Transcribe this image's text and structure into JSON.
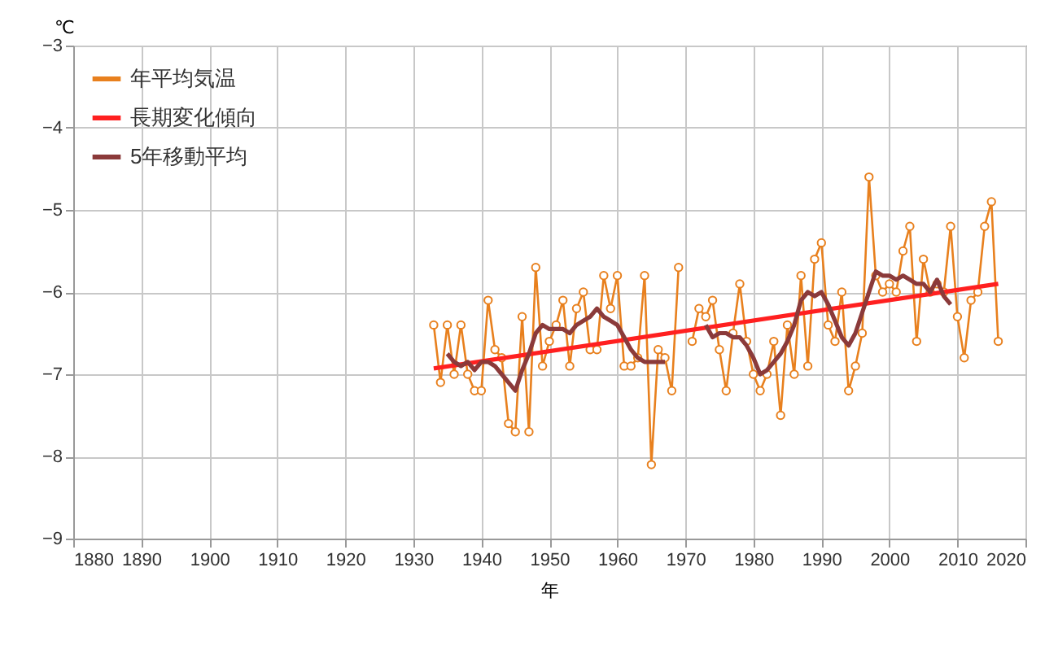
{
  "chart_data": {
    "type": "line",
    "xlabel": "年",
    "ylabel": "℃",
    "xlim": [
      1880,
      2020
    ],
    "xticks": [
      1880,
      1890,
      1900,
      1910,
      1920,
      1930,
      1940,
      1950,
      1960,
      1970,
      1980,
      1990,
      2000,
      2010,
      2020
    ],
    "ylim": [
      -9,
      -3
    ],
    "yticks": [
      -9,
      -8,
      -7,
      -6,
      -5,
      -4,
      -3
    ],
    "grid": true,
    "legend": "top left",
    "series": [
      {
        "name": "年平均気温",
        "color": "#e8801e",
        "marker": "circle",
        "x": [
          1933,
          1934,
          1935,
          1936,
          1937,
          1938,
          1939,
          1940,
          1941,
          1942,
          1943,
          1944,
          1945,
          1946,
          1947,
          1948,
          1949,
          1950,
          1951,
          1952,
          1953,
          1954,
          1955,
          1956,
          1957,
          1958,
          1959,
          1960,
          1961,
          1962,
          1963,
          1964,
          1965,
          1966,
          1967,
          1968,
          1969,
          1970,
          1971,
          1972,
          1973,
          1974,
          1975,
          1976,
          1977,
          1978,
          1979,
          1980,
          1981,
          1982,
          1983,
          1984,
          1985,
          1986,
          1987,
          1988,
          1989,
          1990,
          1991,
          1992,
          1993,
          1994,
          1995,
          1996,
          1997,
          1998,
          1999,
          2000,
          2001,
          2002,
          2003,
          2004,
          2005,
          2006,
          2007,
          2008,
          2009,
          2010,
          2011,
          2012,
          2013,
          2014,
          2015,
          2016
        ],
        "values": [
          -6.4,
          -7.1,
          -6.4,
          -7.0,
          -6.4,
          -7.0,
          -7.2,
          -7.2,
          -6.1,
          -6.7,
          -6.8,
          -7.6,
          -7.7,
          -6.3,
          -7.7,
          -5.7,
          -6.9,
          -6.6,
          -6.4,
          -6.1,
          -6.9,
          -6.2,
          -6.0,
          -6.7,
          -6.7,
          -5.8,
          -6.2,
          -5.8,
          -6.9,
          -6.9,
          -6.8,
          -5.8,
          -8.1,
          -6.7,
          -6.8,
          -7.2,
          -5.7,
          null,
          -6.6,
          -6.2,
          -6.3,
          -6.1,
          -6.7,
          -7.2,
          -6.5,
          -5.9,
          -6.6,
          -7.0,
          -7.2,
          -7.0,
          -6.6,
          -7.5,
          -6.4,
          -7.0,
          -5.8,
          -6.9,
          -5.6,
          -5.4,
          -6.4,
          -6.6,
          -6.0,
          -7.2,
          -6.9,
          -6.5,
          -4.6,
          -5.8,
          -6.0,
          -5.9,
          -6.0,
          -5.5,
          -5.2,
          -6.6,
          -5.6,
          -6.0,
          -5.9,
          -6.0,
          -5.2,
          -6.3,
          -6.8,
          -6.1,
          -6.0,
          -5.2,
          -4.9,
          -6.6
        ]
      },
      {
        "name": "長期変化傾向",
        "color": "#ff2020",
        "marker": "none",
        "x": [
          1933,
          2016
        ],
        "values": [
          -6.93,
          -5.9
        ]
      },
      {
        "name": "5年移動平均",
        "color": "#8b3a3a",
        "marker": "none",
        "x": [
          1935,
          1936,
          1937,
          1938,
          1939,
          1940,
          1941,
          1942,
          1943,
          1944,
          1945,
          1946,
          1947,
          1948,
          1949,
          1950,
          1951,
          1952,
          1953,
          1954,
          1955,
          1956,
          1957,
          1958,
          1959,
          1960,
          1961,
          1962,
          1963,
          1964,
          1965,
          1966,
          1967,
          1968,
          1969,
          1970,
          1971,
          1972,
          1973,
          1974,
          1975,
          1976,
          1977,
          1978,
          1979,
          1980,
          1981,
          1982,
          1983,
          1984,
          1985,
          1986,
          1987,
          1988,
          1989,
          1990,
          1991,
          1992,
          1993,
          1994,
          1995,
          1996,
          1997,
          1998,
          1999,
          2000,
          2001,
          2002,
          2003,
          2004,
          2005,
          2006,
          2007,
          2008,
          2009
        ],
        "values": [
          -6.75,
          -6.85,
          -6.9,
          -6.85,
          -6.95,
          -6.85,
          -6.85,
          -6.9,
          -7.0,
          -7.1,
          -7.2,
          -6.95,
          -6.75,
          -6.5,
          -6.4,
          -6.45,
          -6.45,
          -6.45,
          -6.5,
          -6.4,
          -6.35,
          -6.3,
          -6.2,
          -6.3,
          -6.35,
          -6.4,
          -6.55,
          -6.7,
          -6.8,
          -6.85,
          -6.85,
          -6.85,
          -6.85,
          null,
          null,
          null,
          null,
          null,
          -6.4,
          -6.55,
          -6.5,
          -6.5,
          -6.55,
          -6.55,
          -6.65,
          -6.8,
          -7.0,
          -6.95,
          -6.85,
          -6.75,
          -6.6,
          -6.4,
          -6.1,
          -6.0,
          -6.05,
          -6.0,
          -6.15,
          -6.35,
          -6.55,
          -6.65,
          -6.5,
          -6.25,
          -6.0,
          -5.75,
          -5.8,
          -5.8,
          -5.85,
          -5.8,
          -5.85,
          -5.9,
          -5.9,
          -6.0,
          -5.85,
          -6.05,
          -6.15
        ]
      }
    ]
  }
}
